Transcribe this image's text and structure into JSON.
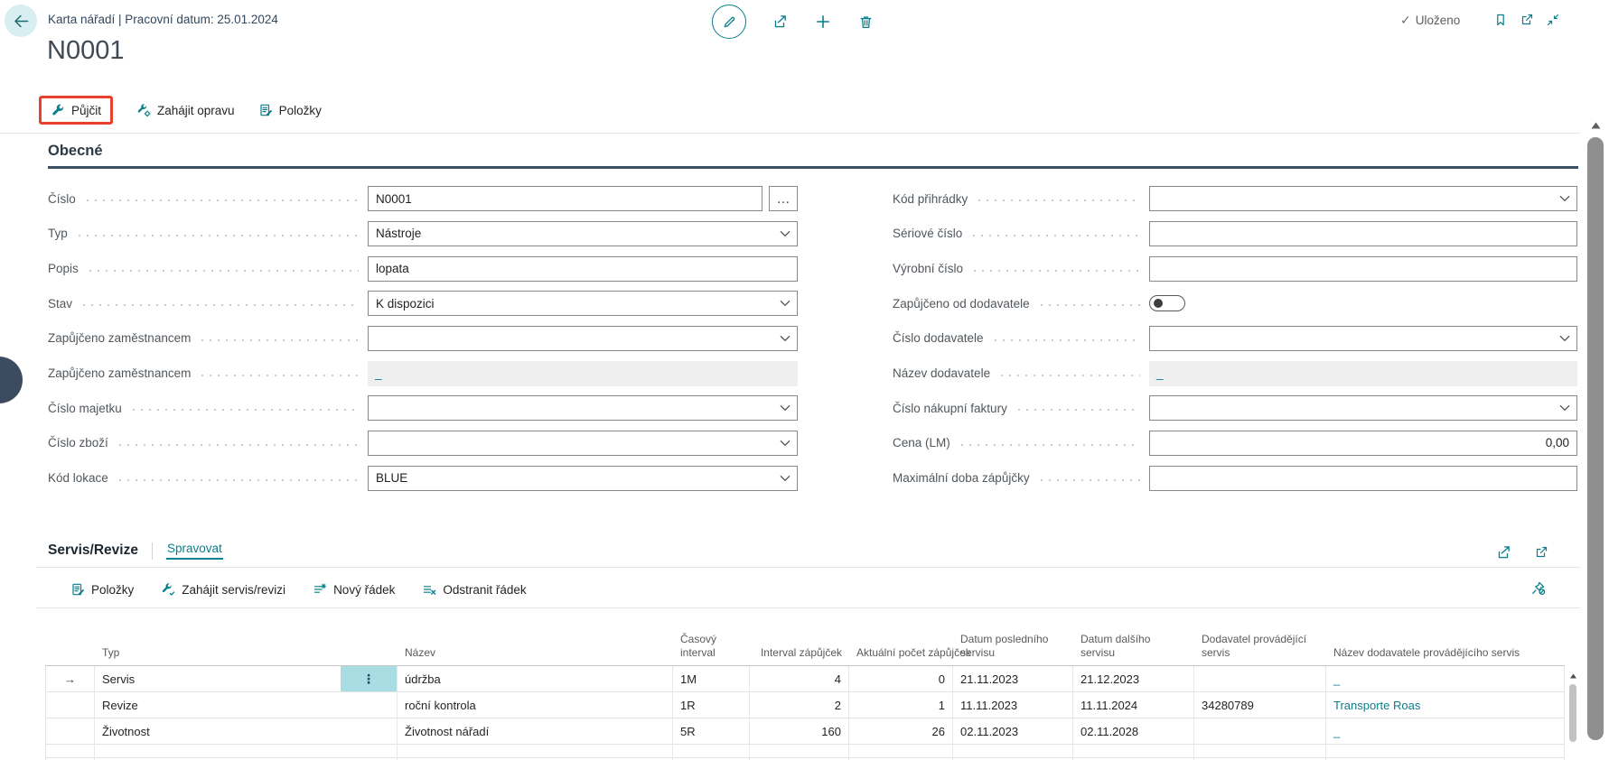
{
  "colors": {
    "accent_teal": "#077f8c",
    "highlight_red": "#e7402c",
    "section_rule": "#3d4f63",
    "link": "#0e7d8a",
    "disabled_bg": "#efefef",
    "row_menu_bg": "#a9dce3"
  },
  "topbar": {
    "breadcrumb": "Karta nářadí | Pracovní datum: 25.01.2024",
    "saved_status": "Uloženo",
    "icons": [
      "back-arrow",
      "edit-pencil",
      "share",
      "add",
      "delete",
      "saved-check",
      "bookmark",
      "open-in-new-window",
      "minimize"
    ]
  },
  "page": {
    "title": "N0001",
    "actions": [
      {
        "name": "pujcit",
        "label": "Půjčit",
        "icon": "tools",
        "highlighted": true
      },
      {
        "name": "zahajit-opravu",
        "label": "Zahájit opravu",
        "icon": "repair",
        "highlighted": false
      },
      {
        "name": "polozky",
        "label": "Položky",
        "icon": "entries",
        "highlighted": false
      }
    ]
  },
  "general": {
    "heading": "Obecné",
    "left_fields": [
      {
        "name": "cislo",
        "label": "Číslo",
        "value": "N0001",
        "control": "assist",
        "assist_button": "…"
      },
      {
        "name": "typ",
        "label": "Typ",
        "value": "Nástroje",
        "control": "lookup"
      },
      {
        "name": "popis",
        "label": "Popis",
        "value": "lopata",
        "control": "text"
      },
      {
        "name": "stav",
        "label": "Stav",
        "value": "K dispozici",
        "control": "lookup"
      },
      {
        "name": "zapujceno-zamestnancem",
        "label": "Zapůjčeno zaměstnancem",
        "value": "",
        "control": "lookup"
      },
      {
        "name": "zapujceno-zamestnancem-jmeno",
        "label": "Zapůjčeno zaměstnancem",
        "value": "_",
        "control": "disabled"
      },
      {
        "name": "cislo-majetku",
        "label": "Číslo majetku",
        "value": "",
        "control": "lookup"
      },
      {
        "name": "cislo-zbozi",
        "label": "Číslo zboží",
        "value": "",
        "control": "lookup"
      },
      {
        "name": "kod-lokace",
        "label": "Kód lokace",
        "value": "BLUE",
        "control": "lookup"
      }
    ],
    "right_fields": [
      {
        "name": "kod-prihradky",
        "label": "Kód přihrádky",
        "value": "",
        "control": "lookup"
      },
      {
        "name": "seriove-cislo",
        "label": "Sériové číslo",
        "value": "",
        "control": "text"
      },
      {
        "name": "vyrobni-cislo",
        "label": "Výrobní číslo",
        "value": "",
        "control": "text"
      },
      {
        "name": "zapujceno-od-dodavatele",
        "label": "Zapůjčeno od dodavatele",
        "value": "off",
        "control": "toggle"
      },
      {
        "name": "cislo-dodavatele",
        "label": "Číslo dodavatele",
        "value": "",
        "control": "lookup"
      },
      {
        "name": "nazev-dodavatele",
        "label": "Název dodavatele",
        "value": "_",
        "control": "disabled"
      },
      {
        "name": "cislo-nakupni-faktury",
        "label": "Číslo nákupní faktury",
        "value": "",
        "control": "lookup"
      },
      {
        "name": "cena-lm",
        "label": "Cena (LM)",
        "value": "0,00",
        "control": "number"
      },
      {
        "name": "maximalni-doba-zapujcky",
        "label": "Maximální doba zápůjčky",
        "value": "",
        "control": "text"
      }
    ]
  },
  "service": {
    "heading": "Servis/Revize",
    "manage_tab": "Spravovat",
    "icons": [
      "share",
      "open-in-new-window",
      "unpin"
    ],
    "actions": [
      {
        "name": "polozky-radku",
        "label": "Položky",
        "icon": "entries"
      },
      {
        "name": "zahajit-servis-revizi",
        "label": "Zahájit servis/revizi",
        "icon": "startservice"
      },
      {
        "name": "novy-radek",
        "label": "Nový řádek",
        "icon": "newline"
      },
      {
        "name": "odstranit-radek",
        "label": "Odstranit řádek",
        "icon": "deleteline"
      }
    ],
    "table": {
      "columns": [
        {
          "label": "Typ",
          "align": "left"
        },
        {
          "label": "Název",
          "align": "left"
        },
        {
          "label": "Časový interval",
          "align": "left"
        },
        {
          "label": "Interval zápůjček",
          "align": "right"
        },
        {
          "label": "Aktuální počet zápůjček",
          "align": "right"
        },
        {
          "label": "Datum posledního servisu",
          "align": "left"
        },
        {
          "label": "Datum dalšího servisu",
          "align": "left"
        },
        {
          "label": "Dodavatel provádějící servis",
          "align": "left"
        },
        {
          "label": "Název dodavatele provádějícího servis",
          "align": "left"
        }
      ],
      "rows": [
        {
          "selected": true,
          "values": [
            "Servis",
            "údržba",
            "1M",
            "4",
            "0",
            "21.11.2023",
            "21.12.2023",
            "",
            "_"
          ]
        },
        {
          "selected": false,
          "values": [
            "Revize",
            "roční kontrola",
            "1R",
            "2",
            "1",
            "11.11.2023",
            "11.11.2024",
            "34280789",
            "Transporte Roas"
          ]
        },
        {
          "selected": false,
          "values": [
            "Životnost",
            "Životnost nářadí",
            "5R",
            "160",
            "26",
            "02.11.2023",
            "02.11.2028",
            "",
            "_"
          ]
        },
        {
          "selected": false,
          "values": [
            "",
            "",
            "",
            "",
            "",
            "",
            "",
            "",
            ""
          ]
        },
        {
          "selected": false,
          "values": [
            "",
            "",
            "",
            "",
            "",
            "",
            "",
            "",
            ""
          ]
        }
      ]
    }
  }
}
